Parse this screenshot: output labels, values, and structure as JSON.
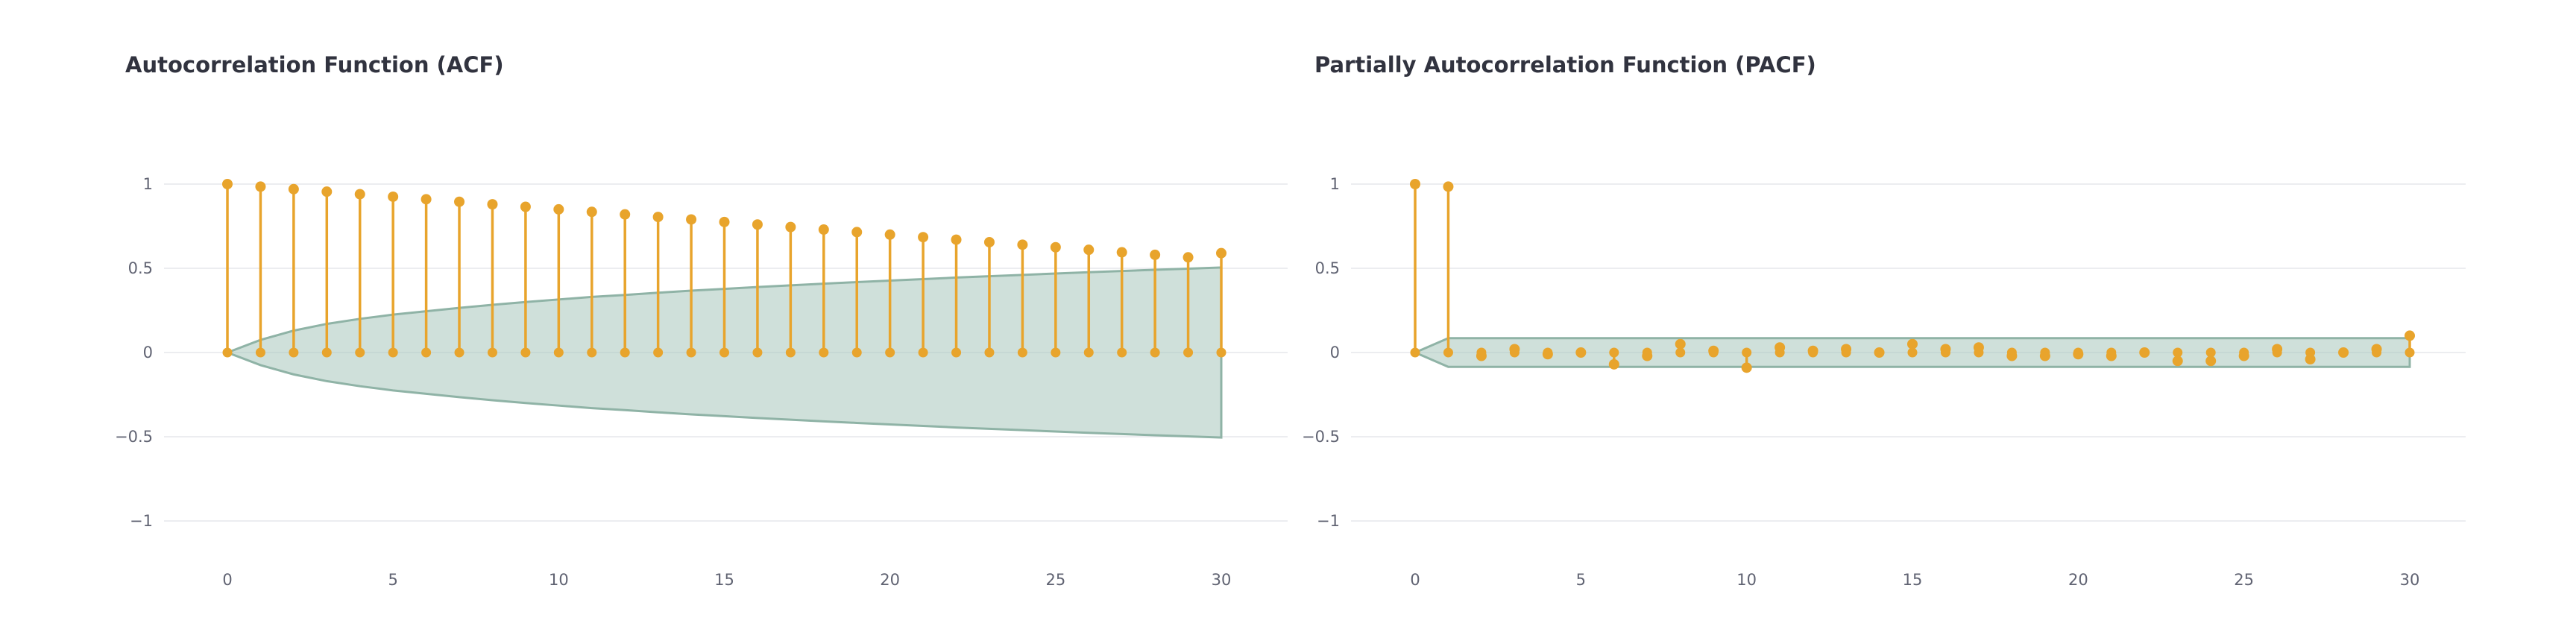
{
  "theme": {
    "stem_color": "#e8a42c",
    "band_fill": "#a8c6bc",
    "band_stroke": "#8fb3a6",
    "grid_color": "#e6e7eb",
    "text_color": "#31333f",
    "tick_color": "#606372"
  },
  "chart_data": [
    {
      "id": "acf",
      "type": "line",
      "title": "Autocorrelation Function (ACF)",
      "xlabel": "",
      "ylabel": "",
      "xlim": [
        0,
        30
      ],
      "ylim": [
        -1,
        1
      ],
      "xticks": [
        0,
        5,
        10,
        15,
        20,
        25,
        30
      ],
      "yticks": [
        1,
        0.5,
        0,
        -0.5,
        -1
      ],
      "ytick_labels": [
        "1",
        "0.5",
        "0",
        "−0.5",
        "−1"
      ],
      "grid": true,
      "legend": "none",
      "lags": [
        0,
        1,
        2,
        3,
        4,
        5,
        6,
        7,
        8,
        9,
        10,
        11,
        12,
        13,
        14,
        15,
        16,
        17,
        18,
        19,
        20,
        21,
        22,
        23,
        24,
        25,
        26,
        27,
        28,
        29,
        30
      ],
      "values": [
        1.0,
        0.985,
        0.97,
        0.955,
        0.94,
        0.925,
        0.91,
        0.895,
        0.88,
        0.865,
        0.85,
        0.835,
        0.82,
        0.805,
        0.79,
        0.775,
        0.76,
        0.745,
        0.73,
        0.715,
        0.7,
        0.685,
        0.67,
        0.655,
        0.64,
        0.625,
        0.61,
        0.595,
        0.58,
        0.565,
        0.59
      ],
      "confidence_upper": [
        0,
        0.075,
        0.13,
        0.17,
        0.2,
        0.225,
        0.245,
        0.265,
        0.283,
        0.3,
        0.315,
        0.33,
        0.342,
        0.355,
        0.367,
        0.378,
        0.389,
        0.399,
        0.409,
        0.418,
        0.427,
        0.436,
        0.445,
        0.453,
        0.461,
        0.469,
        0.477,
        0.484,
        0.491,
        0.498,
        0.505
      ],
      "confidence_lower": [
        0,
        -0.075,
        -0.13,
        -0.17,
        -0.2,
        -0.225,
        -0.245,
        -0.265,
        -0.283,
        -0.3,
        -0.315,
        -0.33,
        -0.342,
        -0.355,
        -0.367,
        -0.378,
        -0.389,
        -0.399,
        -0.409,
        -0.418,
        -0.427,
        -0.436,
        -0.445,
        -0.453,
        -0.461,
        -0.469,
        -0.477,
        -0.484,
        -0.491,
        -0.498,
        -0.505
      ]
    },
    {
      "id": "pacf",
      "type": "line",
      "title": "Partially Autocorrelation Function (PACF)",
      "xlabel": "",
      "ylabel": "",
      "xlim": [
        0,
        30
      ],
      "ylim": [
        -1,
        1
      ],
      "xticks": [
        0,
        5,
        10,
        15,
        20,
        25,
        30
      ],
      "yticks": [
        1,
        0.5,
        0,
        -0.5,
        -1
      ],
      "ytick_labels": [
        "1",
        "0.5",
        "0",
        "−0.5",
        "−1"
      ],
      "grid": true,
      "legend": "none",
      "lags": [
        0,
        1,
        2,
        3,
        4,
        5,
        6,
        7,
        8,
        9,
        10,
        11,
        12,
        13,
        14,
        15,
        16,
        17,
        18,
        19,
        20,
        21,
        22,
        23,
        24,
        25,
        26,
        27,
        28,
        29,
        30
      ],
      "values": [
        1.0,
        0.985,
        -0.02,
        0.02,
        -0.01,
        0.0,
        -0.07,
        -0.02,
        0.05,
        0.01,
        -0.09,
        0.03,
        0.01,
        0.02,
        0.0,
        0.05,
        0.02,
        0.03,
        -0.02,
        -0.02,
        -0.01,
        -0.02,
        0.0,
        -0.05,
        -0.05,
        -0.02,
        0.02,
        -0.04,
        0.0,
        0.02,
        0.1
      ],
      "confidence_upper": [
        0,
        0.085,
        0.085,
        0.085,
        0.085,
        0.085,
        0.085,
        0.085,
        0.085,
        0.085,
        0.085,
        0.085,
        0.085,
        0.085,
        0.085,
        0.085,
        0.085,
        0.085,
        0.085,
        0.085,
        0.085,
        0.085,
        0.085,
        0.085,
        0.085,
        0.085,
        0.085,
        0.085,
        0.085,
        0.085,
        0.085
      ],
      "confidence_lower": [
        0,
        -0.085,
        -0.085,
        -0.085,
        -0.085,
        -0.085,
        -0.085,
        -0.085,
        -0.085,
        -0.085,
        -0.085,
        -0.085,
        -0.085,
        -0.085,
        -0.085,
        -0.085,
        -0.085,
        -0.085,
        -0.085,
        -0.085,
        -0.085,
        -0.085,
        -0.085,
        -0.085,
        -0.085,
        -0.085,
        -0.085,
        -0.085,
        -0.085,
        -0.085,
        -0.085
      ]
    }
  ]
}
